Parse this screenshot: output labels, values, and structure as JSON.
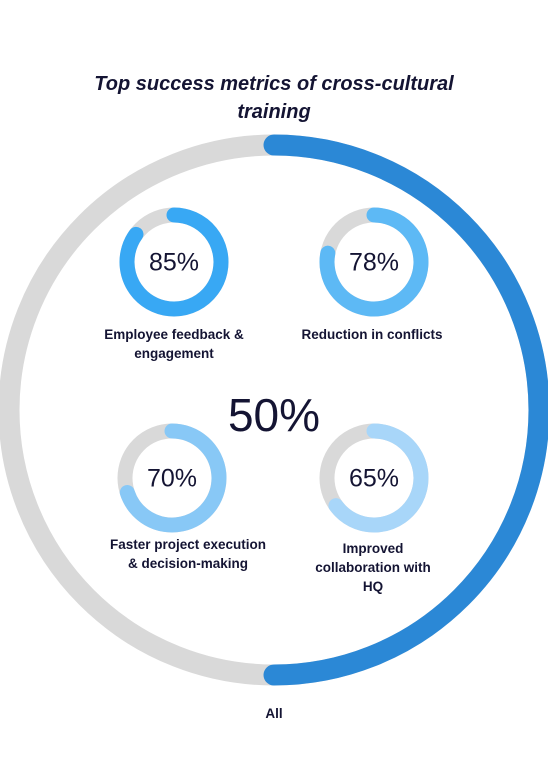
{
  "chart_data": {
    "type": "donut",
    "title": "Top success metrics of cross-cultural training",
    "overall": {
      "label": "All",
      "value": 50,
      "display": "50%"
    },
    "metrics": [
      {
        "label": "Employee feedback & engagement",
        "value": 85,
        "display": "85%",
        "color": "#38a8f4"
      },
      {
        "label": "Reduction in conflicts",
        "value": 78,
        "display": "78%",
        "color": "#5db9f5"
      },
      {
        "label": "Faster project execution & decision-making",
        "value": 70,
        "display": "70%",
        "color": "#88c8f6"
      },
      {
        "label": "Improved collaboration with HQ",
        "value": 65,
        "display": "65%",
        "color": "#a8d6f9"
      }
    ],
    "colors": {
      "overall_fill": "#2b88d6",
      "track": "#d9d9d9",
      "text": "#141433"
    }
  }
}
